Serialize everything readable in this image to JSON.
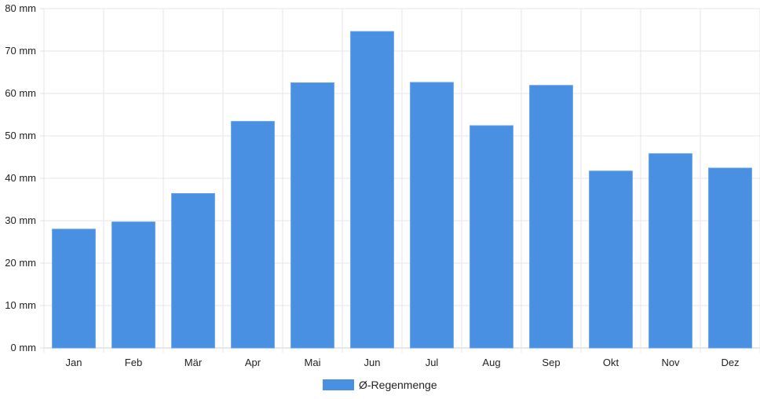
{
  "chart_data": {
    "type": "bar",
    "categories": [
      "Jan",
      "Feb",
      "Mär",
      "Apr",
      "Mai",
      "Jun",
      "Jul",
      "Aug",
      "Sep",
      "Okt",
      "Nov",
      "Dez"
    ],
    "series": [
      {
        "name": "Ø-Regenmenge",
        "values": [
          28,
          29.7,
          36.4,
          53.4,
          62.5,
          74.6,
          62.6,
          52.4,
          61.9,
          41.7,
          45.8,
          42.4
        ],
        "color": "#4a90e2"
      }
    ],
    "yticks": [
      "0 mm",
      "10 mm",
      "20 mm",
      "30 mm",
      "40 mm",
      "50 mm",
      "60 mm",
      "70 mm",
      "80 mm"
    ],
    "ylim": [
      0,
      80
    ],
    "grid": true,
    "legend_position": "bottom-center",
    "title": "",
    "xlabel": "",
    "ylabel": ""
  }
}
